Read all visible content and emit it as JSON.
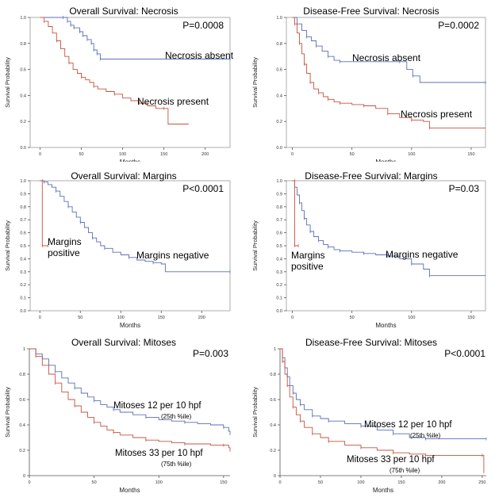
{
  "colors": {
    "blue": "#5b6fb5",
    "red": "#c4543f",
    "axis": "#555555",
    "frame": "#9a9a9a"
  },
  "chart_data": [
    {
      "type": "line",
      "title": "Overall Survival:  Necrosis",
      "pvalue": "P=0.0008",
      "xlabel": "Months",
      "ylabel": "Survival Probability",
      "xlim": [
        -12,
        230
      ],
      "ylim": [
        0,
        1.0
      ],
      "xticks": [
        "0",
        "50",
        "100",
        "150",
        "200"
      ],
      "yticks": [
        "0.0",
        "0.2",
        "0.4",
        "0.6",
        "0.8",
        "1.0"
      ],
      "series": [
        {
          "name": "Necrosis absent",
          "color": "blue",
          "x": [
            0,
            28,
            33,
            37,
            41,
            48,
            52,
            57,
            62,
            65,
            69,
            73,
            230
          ],
          "y": [
            1.0,
            1.0,
            0.97,
            0.94,
            0.92,
            0.89,
            0.86,
            0.83,
            0.8,
            0.75,
            0.72,
            0.68,
            0.68
          ]
        },
        {
          "name": "Necrosis present",
          "color": "red",
          "x": [
            0,
            5,
            10,
            15,
            20,
            25,
            30,
            35,
            40,
            45,
            50,
            55,
            60,
            65,
            70,
            80,
            90,
            100,
            110,
            120,
            130,
            140,
            150,
            155,
            180
          ],
          "y": [
            1.0,
            0.97,
            0.93,
            0.88,
            0.82,
            0.76,
            0.7,
            0.65,
            0.6,
            0.57,
            0.54,
            0.52,
            0.5,
            0.47,
            0.45,
            0.43,
            0.41,
            0.38,
            0.36,
            0.34,
            0.32,
            0.3,
            0.3,
            0.18,
            0.18
          ]
        }
      ],
      "annotations": [
        "Necrosis absent",
        "Necrosis present"
      ]
    },
    {
      "type": "line",
      "title": "Disease-Free Survival:  Necrosis",
      "pvalue": "P=0.0002",
      "xlabel": "Months",
      "ylabel": "Survival Probability",
      "xlim": [
        -5,
        162
      ],
      "ylim": [
        0,
        1.0
      ],
      "xticks": [
        "0",
        "50",
        "100",
        "150"
      ],
      "yticks": [
        "0.0",
        "0.2",
        "0.4",
        "0.6",
        "0.8",
        "1.0"
      ],
      "series": [
        {
          "name": "Necrosis absent",
          "color": "blue",
          "x": [
            0,
            4,
            8,
            12,
            16,
            20,
            25,
            30,
            35,
            40,
            55,
            90,
            96,
            101,
            107,
            162
          ],
          "y": [
            1.0,
            0.95,
            0.9,
            0.85,
            0.82,
            0.78,
            0.74,
            0.7,
            0.67,
            0.66,
            0.66,
            0.66,
            0.6,
            0.55,
            0.5,
            0.5
          ]
        },
        {
          "name": "Necrosis present",
          "color": "red",
          "x": [
            0,
            2,
            4,
            6,
            8,
            10,
            12,
            15,
            18,
            22,
            26,
            30,
            35,
            40,
            50,
            60,
            70,
            80,
            90,
            100,
            110,
            115,
            162
          ],
          "y": [
            1.0,
            0.95,
            0.88,
            0.8,
            0.72,
            0.64,
            0.57,
            0.5,
            0.45,
            0.42,
            0.39,
            0.37,
            0.35,
            0.34,
            0.33,
            0.32,
            0.3,
            0.26,
            0.23,
            0.21,
            0.2,
            0.15,
            0.15
          ]
        }
      ],
      "annotations": [
        "Necrosis absent",
        "Necrosis present"
      ]
    },
    {
      "type": "line",
      "title": "Overall Survival:  Margins",
      "pvalue": "P<0.0001",
      "xlabel": "Months",
      "ylabel": "Survival Probability",
      "xlim": [
        -12,
        235
      ],
      "ylim": [
        0,
        1.0
      ],
      "xticks": [
        "0",
        "50",
        "100",
        "150",
        "200"
      ],
      "yticks": [
        "0.0",
        "0.1",
        "0.2",
        "0.3",
        "0.4",
        "0.5",
        "0.6",
        "0.7",
        "0.8",
        "0.9",
        "1.0"
      ],
      "series": [
        {
          "name": "Margins negative",
          "color": "blue",
          "x": [
            0,
            5,
            10,
            15,
            20,
            25,
            30,
            35,
            40,
            45,
            50,
            55,
            60,
            65,
            70,
            75,
            80,
            90,
            100,
            110,
            120,
            130,
            140,
            150,
            155,
            235
          ],
          "y": [
            1.0,
            0.99,
            0.97,
            0.95,
            0.92,
            0.88,
            0.84,
            0.8,
            0.76,
            0.72,
            0.68,
            0.64,
            0.6,
            0.56,
            0.53,
            0.5,
            0.48,
            0.45,
            0.43,
            0.41,
            0.39,
            0.38,
            0.37,
            0.36,
            0.3,
            0.3
          ]
        },
        {
          "name": "Margins positive",
          "color": "red",
          "x": [
            0,
            3,
            3,
            10
          ],
          "y": [
            1.0,
            1.0,
            0.5,
            0.5
          ]
        }
      ],
      "annotations": [
        "Margins positive",
        "Margins negative"
      ]
    },
    {
      "type": "line",
      "title": "Disease-Free Survival:  Margins",
      "pvalue": "P=0.03",
      "xlabel": "Months",
      "ylabel": "Survival Probability",
      "xlim": [
        -5,
        162
      ],
      "ylim": [
        0,
        1.0
      ],
      "xticks": [
        "0",
        "50",
        "100",
        "150"
      ],
      "yticks": [
        "0.0",
        "0.1",
        "0.2",
        "0.3",
        "0.4",
        "0.5",
        "0.6",
        "0.7",
        "0.8",
        "0.9",
        "1.0"
      ],
      "series": [
        {
          "name": "Margins negative",
          "color": "blue",
          "x": [
            0,
            2,
            4,
            6,
            8,
            10,
            12,
            15,
            18,
            22,
            26,
            30,
            35,
            40,
            50,
            60,
            70,
            80,
            90,
            100,
            110,
            115,
            162
          ],
          "y": [
            1.0,
            0.95,
            0.89,
            0.83,
            0.77,
            0.71,
            0.66,
            0.61,
            0.57,
            0.54,
            0.51,
            0.49,
            0.47,
            0.46,
            0.45,
            0.44,
            0.43,
            0.42,
            0.4,
            0.36,
            0.32,
            0.27,
            0.27
          ]
        },
        {
          "name": "Margins positive",
          "color": "red",
          "x": [
            0,
            2,
            2,
            5
          ],
          "y": [
            1.0,
            1.0,
            0.5,
            0.5
          ]
        }
      ],
      "annotations": [
        "Margins positive",
        "Margins negative"
      ]
    },
    {
      "type": "line",
      "title": "Overall Survival:  Mitoses",
      "pvalue": "P=0.003",
      "xlabel": "Months",
      "ylabel": "Survival Probability",
      "xlim": [
        0,
        155
      ],
      "ylim": [
        0,
        1.0
      ],
      "xticks": [
        "0",
        "50",
        "100",
        "150"
      ],
      "yticks": [
        "0",
        "0.2",
        "0.4",
        "0.6",
        "0.8",
        "1"
      ],
      "series": [
        {
          "name": "Mitoses 12 per 10 hpf",
          "note": "(25th %ile)",
          "color": "blue",
          "x": [
            0,
            5,
            10,
            15,
            20,
            25,
            30,
            35,
            40,
            45,
            50,
            55,
            60,
            65,
            70,
            80,
            90,
            100,
            110,
            120,
            130,
            140,
            150,
            154,
            155
          ],
          "y": [
            1.0,
            0.96,
            0.92,
            0.87,
            0.82,
            0.77,
            0.73,
            0.69,
            0.65,
            0.62,
            0.59,
            0.56,
            0.54,
            0.52,
            0.5,
            0.48,
            0.46,
            0.44,
            0.43,
            0.42,
            0.41,
            0.4,
            0.38,
            0.35,
            0.32
          ]
        },
        {
          "name": "Mitoses 33 per 10 hpf",
          "note": "(75th %ile)",
          "color": "red",
          "x": [
            0,
            5,
            10,
            15,
            20,
            25,
            30,
            35,
            40,
            45,
            50,
            55,
            60,
            65,
            70,
            80,
            90,
            100,
            110,
            120,
            130,
            140,
            150,
            154,
            155
          ],
          "y": [
            1.0,
            0.94,
            0.87,
            0.8,
            0.73,
            0.66,
            0.6,
            0.55,
            0.5,
            0.46,
            0.42,
            0.39,
            0.36,
            0.34,
            0.32,
            0.3,
            0.28,
            0.27,
            0.26,
            0.25,
            0.25,
            0.24,
            0.24,
            0.22,
            0.19
          ]
        }
      ],
      "annotations": [
        "Mitoses 12 per 10 hpf",
        "(25th %ile)",
        "Mitoses 33 per 10 hpf",
        "(75th %ile)"
      ]
    },
    {
      "type": "line",
      "title": "Disease-Free Survival:  Mitoses",
      "pvalue": "P<0.0001",
      "xlabel": "Months",
      "ylabel": "Survival Probability",
      "xlim": [
        0,
        255
      ],
      "ylim": [
        0,
        1.0
      ],
      "xticks": [
        "0",
        "50",
        "100",
        "150",
        "200",
        "250"
      ],
      "yticks": [
        "0",
        "0.2",
        "0.4",
        "0.6",
        "0.8",
        "1"
      ],
      "series": [
        {
          "name": "Mitoses 12 per 10 hpf",
          "note": "(25th %ile)",
          "color": "blue",
          "x": [
            0,
            3,
            6,
            9,
            12,
            16,
            20,
            25,
            30,
            40,
            50,
            60,
            80,
            100,
            120,
            140,
            160,
            180,
            200,
            255
          ],
          "y": [
            1.0,
            0.93,
            0.85,
            0.78,
            0.71,
            0.65,
            0.6,
            0.56,
            0.52,
            0.47,
            0.45,
            0.43,
            0.41,
            0.39,
            0.36,
            0.33,
            0.3,
            0.29,
            0.29,
            0.29
          ]
        },
        {
          "name": "Mitoses 33 per 10 hpf",
          "note": "(75th %ile)",
          "color": "red",
          "x": [
            0,
            3,
            6,
            9,
            12,
            16,
            20,
            25,
            30,
            40,
            50,
            60,
            80,
            100,
            120,
            140,
            160,
            180,
            200,
            250,
            252
          ],
          "y": [
            1.0,
            0.9,
            0.8,
            0.71,
            0.62,
            0.54,
            0.48,
            0.43,
            0.38,
            0.33,
            0.3,
            0.27,
            0.24,
            0.22,
            0.2,
            0.18,
            0.17,
            0.16,
            0.16,
            0.16,
            0.02
          ]
        }
      ],
      "annotations": [
        "Mitoses 12 per 10 hpf",
        "(25th %ile)",
        "Mitoses 33 per 10 hpf",
        "(75th %ile)"
      ]
    }
  ]
}
